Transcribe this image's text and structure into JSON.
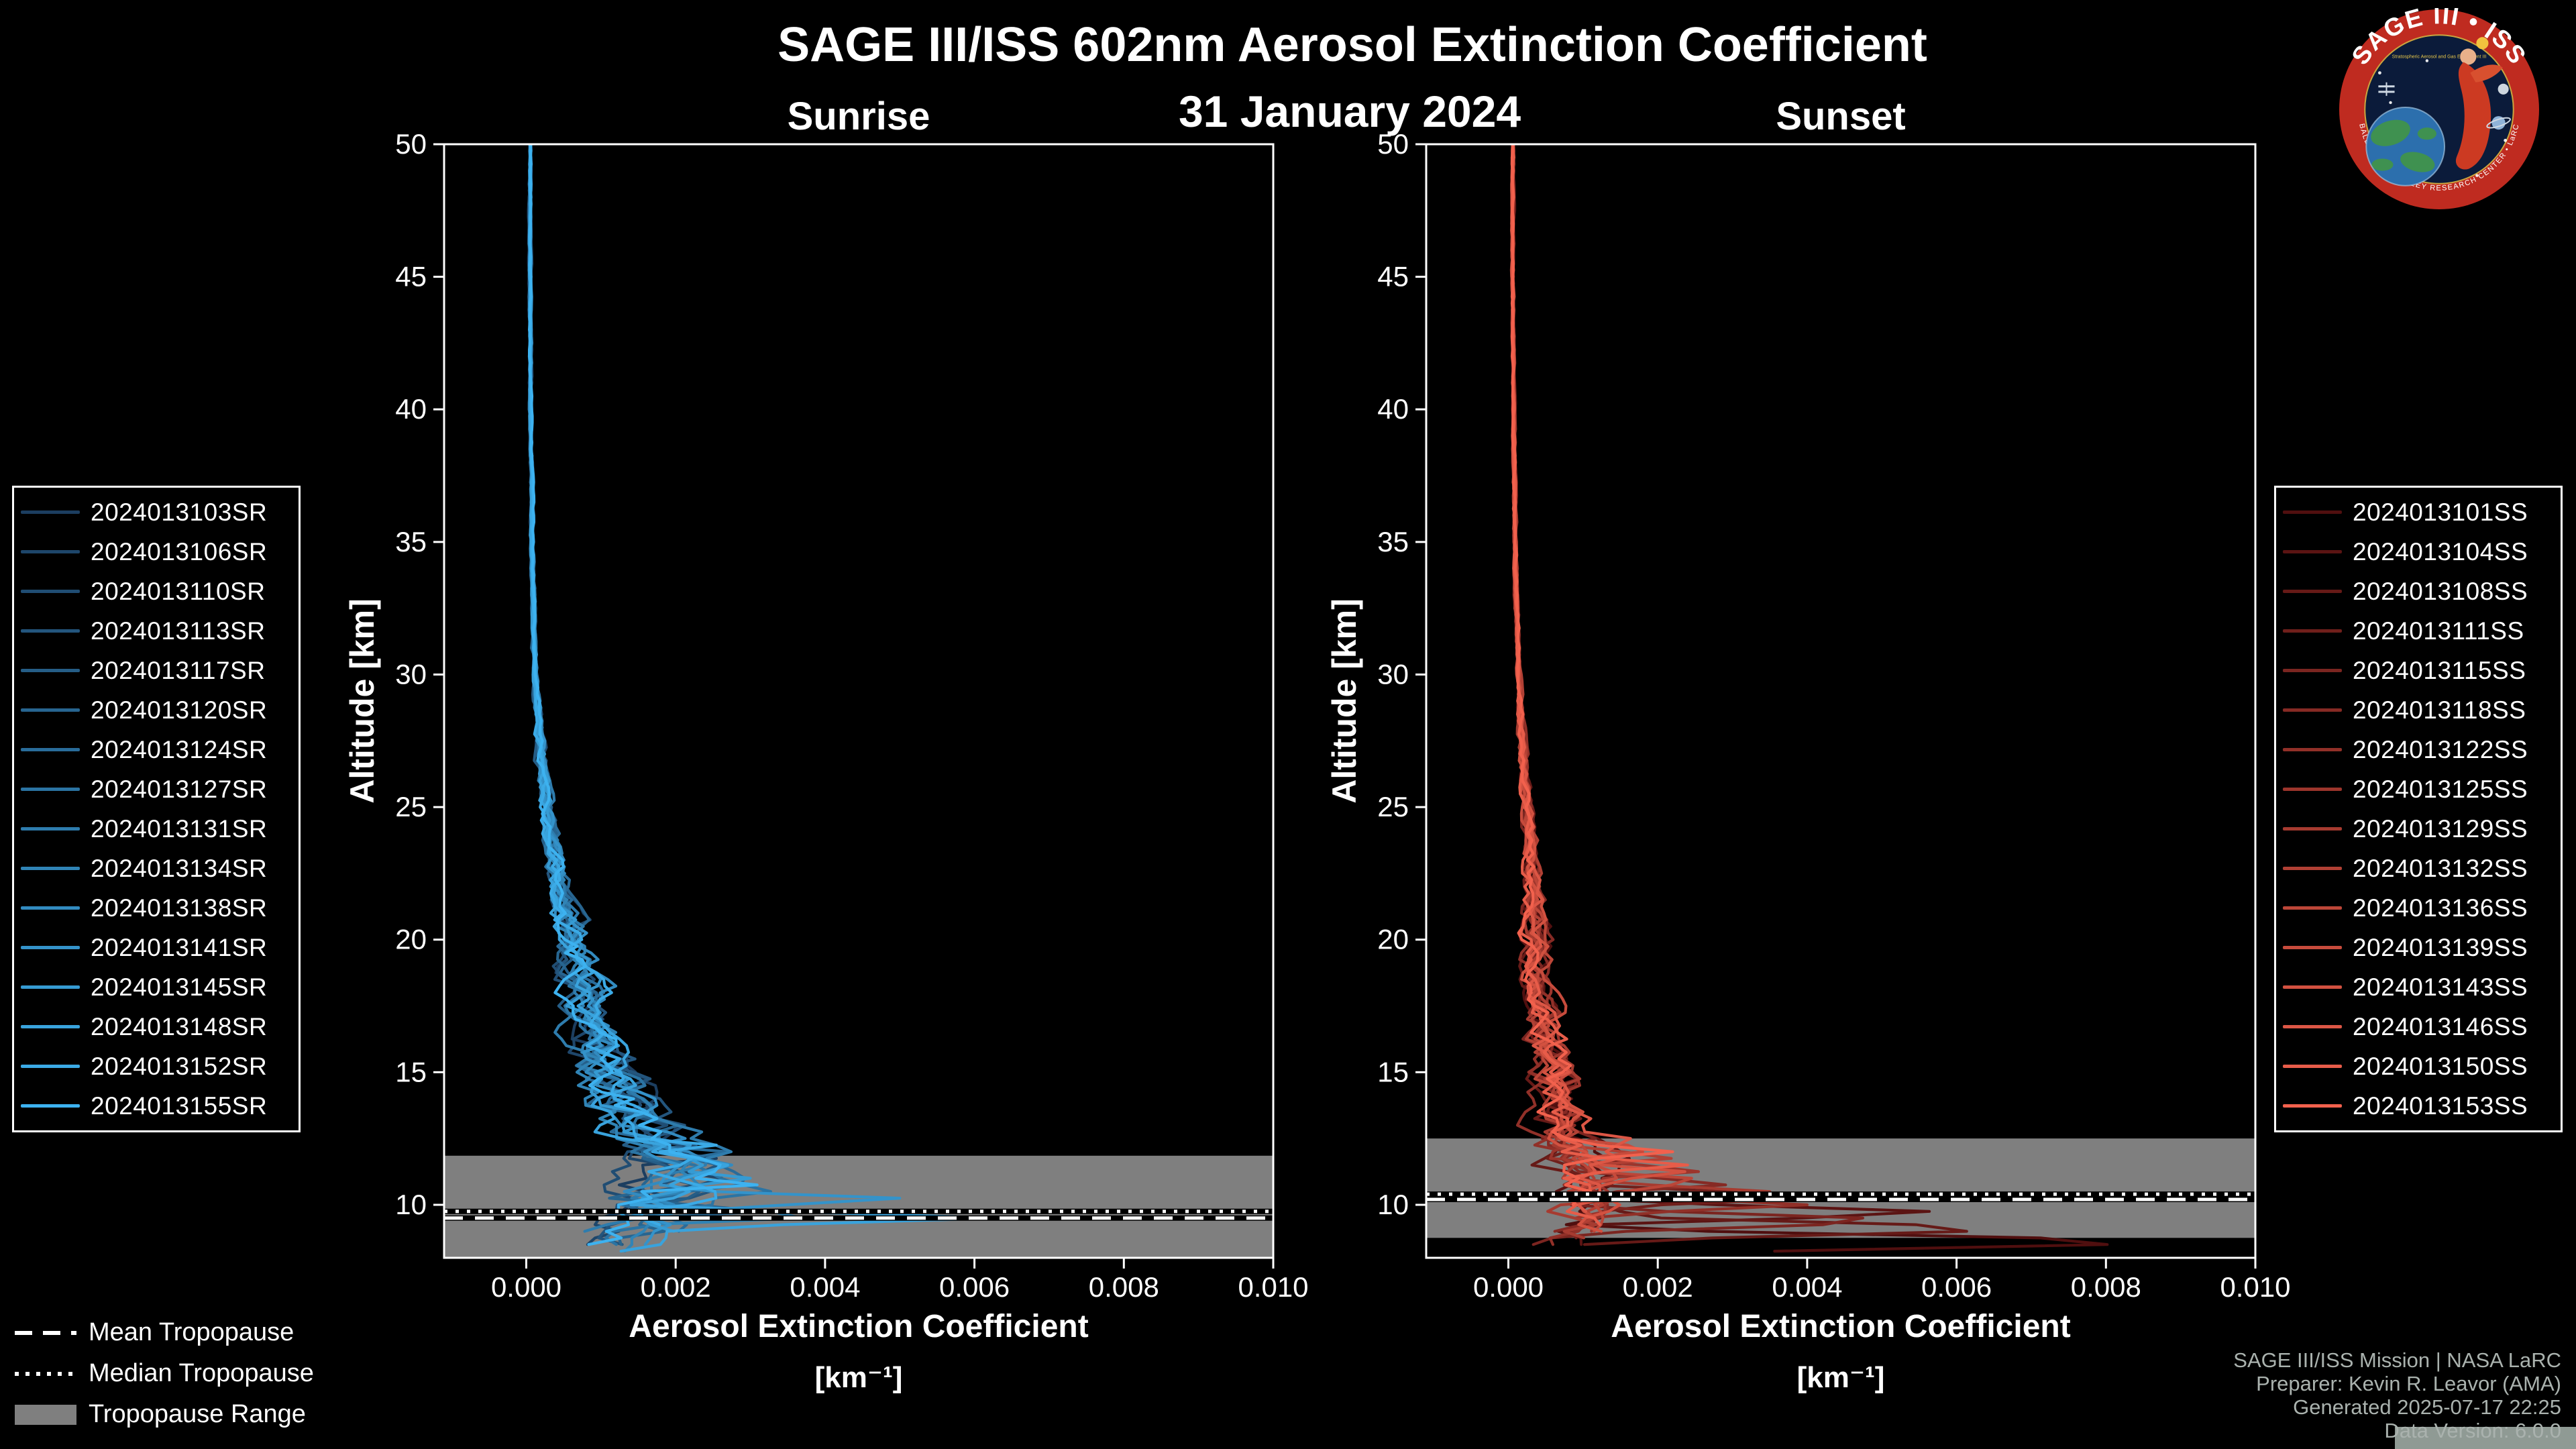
{
  "page": {
    "title": "SAGE III/ISS 602nm Aerosol Extinction Coefficient",
    "date": "31 January 2024"
  },
  "colors": {
    "background": "#000000",
    "panel_border": "#ffffff",
    "tropopause_band": "#7f7f7f",
    "tick": "#ffffff",
    "attribution_text": "#aab2ae",
    "logo_ring": "#bf2b20",
    "logo_inner": "#0b1b3a"
  },
  "tropopause_legend": {
    "mean": "Mean Tropopause",
    "median": "Median Tropopause",
    "range": "Tropopause Range"
  },
  "attribution": {
    "line1": "SAGE III/ISS Mission | NASA LaRC",
    "line2": "Preparer: Kevin R. Leavor (AMA)",
    "line3": "Generated 2025-07-17 22:25",
    "line4": "Data Version: 6.0.0"
  },
  "logo": {
    "arc_text": "SAGE III • ISS",
    "sub_text": "Stratospheric Aerosol and Gas Experiment III",
    "bottom_text": "BALL • NASA LANGLEY RESEARCH CENTER • LaRC"
  },
  "chart_data": [
    {
      "type": "line",
      "title": "Sunrise",
      "xlabel": "Aerosol Extinction Coefficient",
      "xlabel_units": "[km⁻¹]",
      "ylabel": "Altitude [km]",
      "xlim": [
        -0.0011,
        0.01
      ],
      "ylim": [
        8,
        50
      ],
      "x_ticks": [
        0,
        0.002,
        0.004,
        0.006,
        0.008,
        0.01
      ],
      "x_tick_labels": [
        "0.000",
        "0.002",
        "0.004",
        "0.006",
        "0.008",
        "0.010"
      ],
      "y_ticks": [
        10,
        15,
        20,
        25,
        30,
        35,
        40,
        45,
        50
      ],
      "grid": false,
      "legend_position": "outside-left",
      "tropopause": {
        "mean": 9.5,
        "median": 9.75,
        "range": [
          8.0,
          11.85
        ]
      },
      "base_profile": [
        [
          8,
          0.001
        ],
        [
          9,
          0.0014
        ],
        [
          10,
          0.0017
        ],
        [
          10.8,
          0.002
        ],
        [
          11.5,
          0.0022
        ],
        [
          12,
          0.0019
        ],
        [
          13,
          0.0016
        ],
        [
          14,
          0.0013
        ],
        [
          15,
          0.0011
        ],
        [
          16,
          0.00095
        ],
        [
          17,
          0.00085
        ],
        [
          18,
          0.00075
        ],
        [
          19,
          0.00068
        ],
        [
          20,
          0.0006
        ],
        [
          21,
          0.0005
        ],
        [
          22,
          0.00042
        ],
        [
          23,
          0.00036
        ],
        [
          25,
          0.00028
        ],
        [
          27,
          0.0002
        ],
        [
          30,
          0.00012
        ],
        [
          35,
          8e-05
        ],
        [
          40,
          6e-05
        ],
        [
          45,
          5e-05
        ],
        [
          50,
          5e-05
        ]
      ],
      "noise_amp": [
        [
          8,
          0.00045
        ],
        [
          10,
          0.00045
        ],
        [
          12,
          0.0004
        ],
        [
          14,
          0.00032
        ],
        [
          16,
          0.00026
        ],
        [
          18,
          0.0002
        ],
        [
          20,
          0.00016
        ],
        [
          22,
          0.0001
        ],
        [
          25,
          6e-05
        ],
        [
          30,
          2e-05
        ],
        [
          40,
          1e-05
        ],
        [
          50,
          1e-05
        ]
      ],
      "series": [
        {
          "label": "2024013103SR",
          "color": "#1c3e60",
          "seed": 101,
          "cutoff": 9.6,
          "spike_ext": 0.0028,
          "spike_alt": 11.8
        },
        {
          "label": "2024013106SR",
          "color": "#1e466a",
          "seed": 102,
          "cutoff": 8.4,
          "spike_ext": 0.0032,
          "spike_alt": 10.9
        },
        {
          "label": "2024013110SR",
          "color": "#204d73",
          "seed": 103,
          "cutoff": 9.2,
          "spike_ext": 0.0025,
          "spike_alt": 12.3
        },
        {
          "label": "2024013113SR",
          "color": "#23557d",
          "seed": 104,
          "cutoff": 8.3,
          "spike_ext": 0.003,
          "spike_alt": 10.4
        },
        {
          "label": "2024013117SR",
          "color": "#255d86",
          "seed": 105,
          "cutoff": 9.9,
          "spike_ext": 0.0022,
          "spike_alt": 11.2
        },
        {
          "label": "2024013120SR",
          "color": "#276590",
          "seed": 106,
          "cutoff": 8.3,
          "spike_ext": 0.0035,
          "spike_alt": 9.8
        },
        {
          "label": "2024013124SR",
          "color": "#296c9a",
          "seed": 107,
          "cutoff": 9.0,
          "spike_ext": 0.0027,
          "spike_alt": 12.0
        },
        {
          "label": "2024013127SR",
          "color": "#2b74a3",
          "seed": 108,
          "cutoff": 8.5,
          "spike_ext": 0.004,
          "spike_alt": 10.6
        },
        {
          "label": "2024013131SR",
          "color": "#2e7cad",
          "seed": 109,
          "cutoff": 8.9,
          "spike_ext": 0.0024,
          "spike_alt": 11.5
        },
        {
          "label": "2024013134SR",
          "color": "#3084b6",
          "seed": 110,
          "cutoff": 8.2,
          "spike_ext": 0.0045,
          "spike_alt": 9.6
        },
        {
          "label": "2024013138SR",
          "color": "#328bc0",
          "seed": 111,
          "cutoff": 9.4,
          "spike_ext": 0.0026,
          "spike_alt": 12.6
        },
        {
          "label": "2024013141SR",
          "color": "#3493ca",
          "seed": 112,
          "cutoff": 8.3,
          "spike_ext": 0.0055,
          "spike_alt": 10.2
        },
        {
          "label": "2024013145SR",
          "color": "#369bd3",
          "seed": 113,
          "cutoff": 8.8,
          "spike_ext": 0.003,
          "spike_alt": 11.0
        },
        {
          "label": "2024013148SR",
          "color": "#39a3dd",
          "seed": 114,
          "cutoff": 8.2,
          "spike_ext": 0.0063,
          "spike_alt": 9.5
        },
        {
          "label": "2024013152SR",
          "color": "#3baae6",
          "seed": 115,
          "cutoff": 9.1,
          "spike_ext": 0.0028,
          "spike_alt": 12.2
        },
        {
          "label": "2024013155SR",
          "color": "#3db2f0",
          "seed": 116,
          "cutoff": 8.5,
          "spike_ext": 0.0034,
          "spike_alt": 10.8
        }
      ]
    },
    {
      "type": "line",
      "title": "Sunset",
      "xlabel": "Aerosol Extinction Coefficient",
      "xlabel_units": "[km⁻¹]",
      "ylabel": "Altitude [km]",
      "xlim": [
        -0.0011,
        0.01
      ],
      "ylim": [
        8,
        50
      ],
      "x_ticks": [
        0,
        0.002,
        0.004,
        0.006,
        0.008,
        0.01
      ],
      "x_tick_labels": [
        "0.000",
        "0.002",
        "0.004",
        "0.006",
        "0.008",
        "0.010"
      ],
      "y_ticks": [
        10,
        15,
        20,
        25,
        30,
        35,
        40,
        45,
        50
      ],
      "grid": false,
      "legend_position": "outside-right",
      "tropopause": {
        "mean": 10.2,
        "median": 10.4,
        "range": [
          8.75,
          12.5
        ]
      },
      "base_profile": [
        [
          8,
          0.0007
        ],
        [
          9,
          0.0009
        ],
        [
          10,
          0.001
        ],
        [
          11,
          0.00095
        ],
        [
          12,
          0.00085
        ],
        [
          13,
          0.00075
        ],
        [
          14,
          0.00065
        ],
        [
          15,
          0.00055
        ],
        [
          16,
          0.0005
        ],
        [
          18,
          0.00042
        ],
        [
          20,
          0.00038
        ],
        [
          22,
          0.00032
        ],
        [
          25,
          0.00026
        ],
        [
          27,
          0.0002
        ],
        [
          30,
          0.00014
        ],
        [
          35,
          9e-05
        ],
        [
          40,
          7e-05
        ],
        [
          45,
          6e-05
        ],
        [
          50,
          6e-05
        ]
      ],
      "noise_amp": [
        [
          8,
          0.00035
        ],
        [
          10,
          0.00035
        ],
        [
          12,
          0.0003
        ],
        [
          14,
          0.00022
        ],
        [
          16,
          0.00018
        ],
        [
          18,
          0.00014
        ],
        [
          20,
          0.00012
        ],
        [
          22,
          8e-05
        ],
        [
          25,
          5e-05
        ],
        [
          30,
          1.8e-05
        ],
        [
          40,
          1e-05
        ],
        [
          50,
          1e-05
        ]
      ],
      "series": [
        {
          "label": "2024013101SS",
          "color": "#500f0f",
          "seed": 201,
          "cutoff": 8.2,
          "spike_ext": 0.0098,
          "spike_alt": 8.6
        },
        {
          "label": "2024013104SS",
          "color": "#5b1413",
          "seed": 202,
          "cutoff": 8.4,
          "spike_ext": 0.0062,
          "spike_alt": 9.7
        },
        {
          "label": "2024013108SS",
          "color": "#661a17",
          "seed": 203,
          "cutoff": 8.3,
          "spike_ext": 0.0075,
          "spike_alt": 9.1
        },
        {
          "label": "2024013111SS",
          "color": "#701f1b",
          "seed": 204,
          "cutoff": 8.6,
          "spike_ext": 0.0045,
          "spike_alt": 10.3
        },
        {
          "label": "2024013115SS",
          "color": "#7b2520",
          "seed": 205,
          "cutoff": 8.3,
          "spike_ext": 0.0058,
          "spike_alt": 9.4
        },
        {
          "label": "2024013118SS",
          "color": "#862a24",
          "seed": 206,
          "cutoff": 8.8,
          "spike_ext": 0.0032,
          "spike_alt": 10.8
        },
        {
          "label": "2024013122SS",
          "color": "#913028",
          "seed": 207,
          "cutoff": 8.5,
          "spike_ext": 0.004,
          "spike_alt": 10.0
        },
        {
          "label": "2024013125SS",
          "color": "#9c352c",
          "seed": 208,
          "cutoff": 9.0,
          "spike_ext": 0.0028,
          "spike_alt": 11.3
        },
        {
          "label": "2024013129SS",
          "color": "#a63b30",
          "seed": 209,
          "cutoff": 8.6,
          "spike_ext": 0.0035,
          "spike_alt": 10.5
        },
        {
          "label": "2024013132SS",
          "color": "#b14034",
          "seed": 210,
          "cutoff": 9.2,
          "spike_ext": 0.0024,
          "spike_alt": 11.8
        },
        {
          "label": "2024013136SS",
          "color": "#bc4638",
          "seed": 211,
          "cutoff": 8.8,
          "spike_ext": 0.003,
          "spike_alt": 10.9
        },
        {
          "label": "2024013139SS",
          "color": "#c74b3c",
          "seed": 212,
          "cutoff": 9.4,
          "spike_ext": 0.0022,
          "spike_alt": 12.1
        },
        {
          "label": "2024013143SS",
          "color": "#d25140",
          "seed": 213,
          "cutoff": 9.0,
          "spike_ext": 0.0026,
          "spike_alt": 11.2
        },
        {
          "label": "2024013146SS",
          "color": "#dc5645",
          "seed": 214,
          "cutoff": 9.6,
          "spike_ext": 0.002,
          "spike_alt": 12.4
        },
        {
          "label": "2024013150SS",
          "color": "#e75c49",
          "seed": 215,
          "cutoff": 9.2,
          "spike_ext": 0.0024,
          "spike_alt": 11.5
        },
        {
          "label": "2024013153SS",
          "color": "#f2614d",
          "seed": 216,
          "cutoff": 9.8,
          "spike_ext": 0.0022,
          "spike_alt": 12.0
        }
      ]
    }
  ]
}
